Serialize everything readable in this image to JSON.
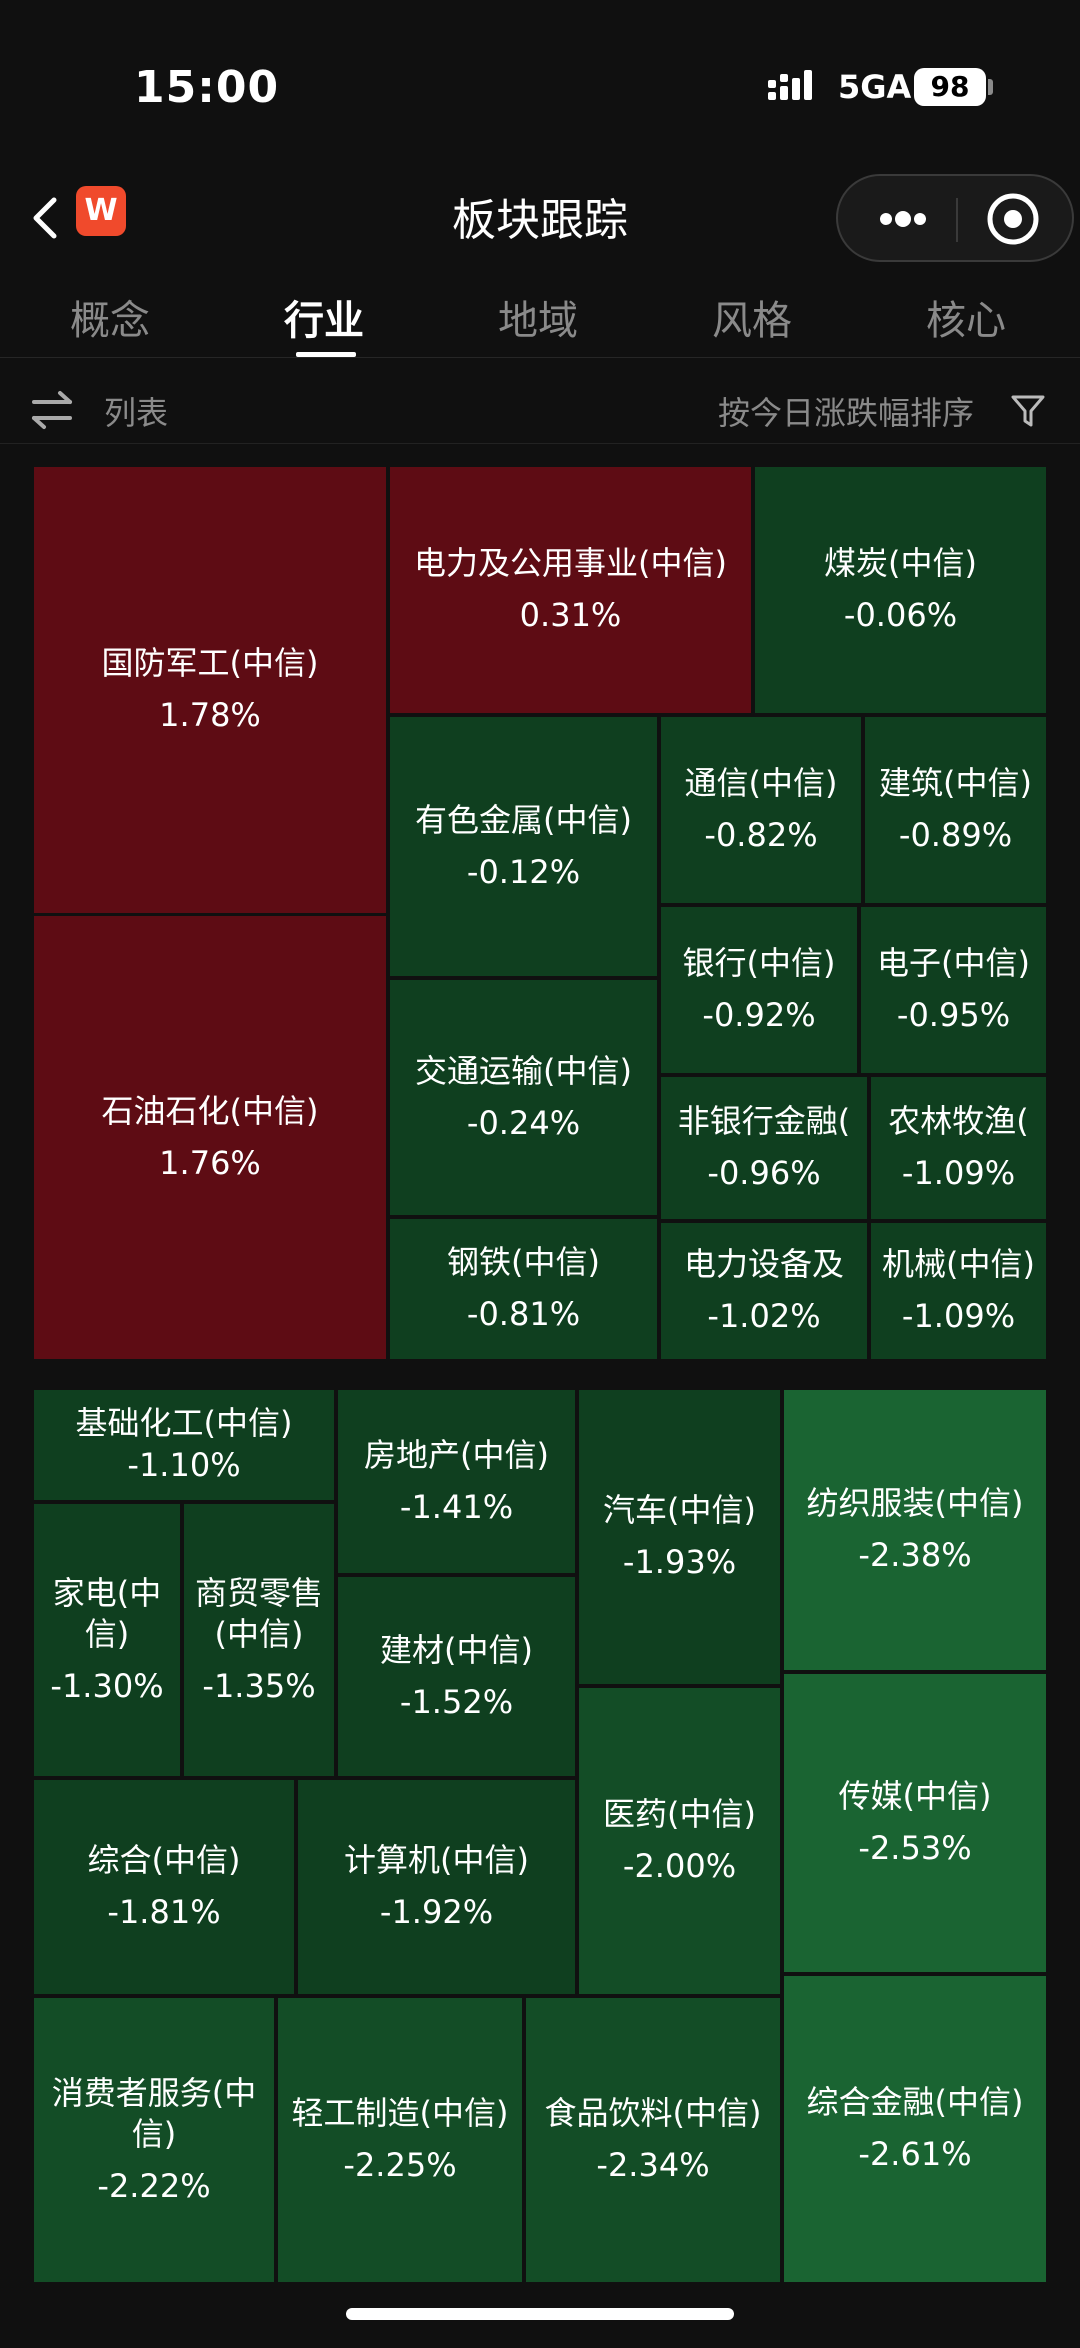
{
  "status_bar": {
    "time": "15:00",
    "network": "5GA",
    "battery": "98"
  },
  "nav": {
    "title": "板块跟踪",
    "logo_letter": "W"
  },
  "tabs": [
    {
      "label": "概念"
    },
    {
      "label": "行业"
    },
    {
      "label": "地域"
    },
    {
      "label": "风格"
    },
    {
      "label": "核心"
    }
  ],
  "active_tab": "行业",
  "toolbar": {
    "list_label": "列表",
    "sort_label": "按今日涨跌幅排序"
  },
  "colors": {
    "up": "#5e0c14",
    "down_dark": "#0f3f1f",
    "down_mid": "#134d26",
    "down_light": "#1a6432",
    "background": "#101010"
  },
  "sectors": [
    {
      "name": "国防军工(中信)",
      "change": "1.78%"
    },
    {
      "name": "石油石化(中信)",
      "change": "1.76%"
    },
    {
      "name": "电力及公用事业(中信)",
      "change": "0.31%"
    },
    {
      "name": "煤炭(中信)",
      "change": "-0.06%"
    },
    {
      "name": "有色金属(中信)",
      "change": "-0.12%"
    },
    {
      "name": "通信(中信)",
      "change": "-0.82%"
    },
    {
      "name": "建筑(中信)",
      "change": "-0.89%"
    },
    {
      "name": "银行(中信)",
      "change": "-0.92%"
    },
    {
      "name": "电子(中信)",
      "change": "-0.95%"
    },
    {
      "name": "交通运输(中信)",
      "change": "-0.24%"
    },
    {
      "name": "非银行金融(",
      "change": "-0.96%"
    },
    {
      "name": "农林牧渔(",
      "change": "-1.09%"
    },
    {
      "name": "钢铁(中信)",
      "change": "-0.81%"
    },
    {
      "name": "电力设备及",
      "change": "-1.02%"
    },
    {
      "name": "机械(中信)",
      "change": "-1.09%"
    },
    {
      "name": "基础化工(中信)",
      "change": "-1.10%"
    },
    {
      "name": "房地产(中信)",
      "change": "-1.41%"
    },
    {
      "name": "汽车(中信)",
      "change": "-1.93%"
    },
    {
      "name": "纺织服装(中信)",
      "change": "-2.38%"
    },
    {
      "name": "家电(中信)",
      "change": "-1.30%"
    },
    {
      "name": "商贸零售(中信)",
      "change": "-1.35%"
    },
    {
      "name": "建材(中信)",
      "change": "-1.52%"
    },
    {
      "name": "医药(中信)",
      "change": "-2.00%"
    },
    {
      "name": "传媒(中信)",
      "change": "-2.53%"
    },
    {
      "name": "综合(中信)",
      "change": "-1.81%"
    },
    {
      "name": "计算机(中信)",
      "change": "-1.92%"
    },
    {
      "name": "消费者服务(中信)",
      "change": "-2.22%"
    },
    {
      "name": "轻工制造(中信)",
      "change": "-2.25%"
    },
    {
      "name": "食品饮料(中信)",
      "change": "-2.34%"
    },
    {
      "name": "综合金融(中信)",
      "change": "-2.61%"
    }
  ]
}
